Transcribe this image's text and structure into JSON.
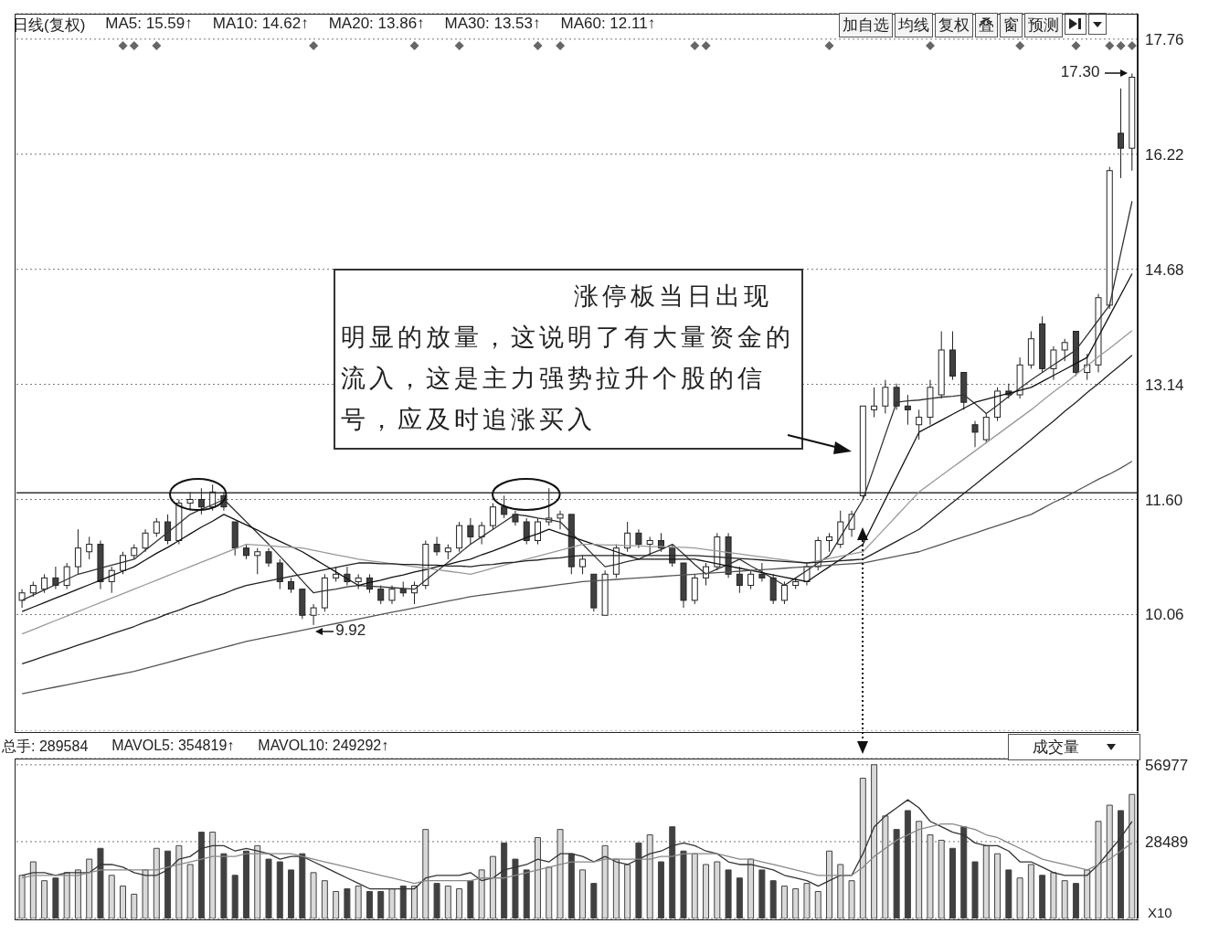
{
  "chart_data": [
    {
      "type": "candlestick",
      "categories": [
        null,
        null,
        null,
        null,
        null,
        null,
        null,
        null,
        null,
        null,
        null,
        null,
        null,
        null,
        null,
        null,
        null,
        null,
        null,
        null,
        null,
        null,
        null,
        null,
        null,
        null,
        null,
        null,
        null,
        null,
        null,
        null,
        null,
        null,
        null,
        null,
        null,
        null,
        null,
        null,
        null,
        null,
        null,
        null,
        null,
        null,
        null,
        null,
        null,
        null,
        null,
        null,
        null,
        null,
        null,
        null,
        null,
        null,
        null,
        null,
        null,
        null,
        null,
        null,
        null,
        null,
        null,
        null,
        null,
        null,
        null,
        null,
        null,
        null,
        null,
        null,
        null,
        null,
        null,
        null,
        null,
        null,
        null,
        null,
        null,
        null,
        null,
        null,
        null,
        null,
        null,
        null,
        null,
        null,
        null,
        null,
        null,
        null,
        null,
        null
      ],
      "ohlc": [
        [
          10.25,
          10.4,
          10.15,
          10.35
        ],
        [
          10.35,
          10.5,
          10.3,
          10.45
        ],
        [
          10.4,
          10.6,
          10.35,
          10.55
        ],
        [
          10.55,
          10.7,
          10.4,
          10.45
        ],
        [
          10.45,
          10.75,
          10.4,
          10.7
        ],
        [
          10.7,
          11.2,
          10.6,
          10.95
        ],
        [
          10.9,
          11.1,
          10.8,
          11.0
        ],
        [
          11.0,
          11.05,
          10.4,
          10.5
        ],
        [
          10.5,
          10.7,
          10.35,
          10.65
        ],
        [
          10.65,
          10.9,
          10.6,
          10.85
        ],
        [
          10.85,
          11.0,
          10.8,
          10.95
        ],
        [
          10.95,
          11.2,
          10.9,
          11.15
        ],
        [
          11.15,
          11.35,
          11.1,
          11.3
        ],
        [
          11.3,
          11.4,
          11.0,
          11.05
        ],
        [
          11.05,
          11.6,
          11.0,
          11.55
        ],
        [
          11.55,
          11.7,
          11.45,
          11.6
        ],
        [
          11.6,
          11.75,
          11.4,
          11.5
        ],
        [
          11.5,
          11.8,
          11.45,
          11.7
        ],
        [
          11.65,
          11.7,
          11.45,
          11.5
        ],
        [
          11.3,
          11.3,
          10.85,
          10.95
        ],
        [
          10.95,
          11.0,
          10.8,
          10.85
        ],
        [
          10.85,
          10.95,
          10.6,
          10.9
        ],
        [
          10.9,
          10.95,
          10.7,
          10.75
        ],
        [
          10.75,
          10.8,
          10.4,
          10.5
        ],
        [
          10.5,
          10.55,
          10.35,
          10.4
        ],
        [
          10.4,
          10.4,
          10.0,
          10.05
        ],
        [
          10.05,
          10.2,
          9.92,
          10.15
        ],
        [
          10.15,
          10.6,
          10.1,
          10.55
        ],
        [
          10.55,
          10.7,
          10.5,
          10.6
        ],
        [
          10.6,
          10.7,
          10.45,
          10.5
        ],
        [
          10.5,
          10.6,
          10.4,
          10.55
        ],
        [
          10.55,
          10.6,
          10.35,
          10.4
        ],
        [
          10.4,
          10.45,
          10.2,
          10.25
        ],
        [
          10.25,
          10.45,
          10.2,
          10.4
        ],
        [
          10.4,
          10.5,
          10.3,
          10.35
        ],
        [
          10.35,
          10.5,
          10.2,
          10.45
        ],
        [
          10.45,
          11.05,
          10.4,
          11.0
        ],
        [
          11.0,
          11.1,
          10.85,
          10.9
        ],
        [
          10.9,
          11.0,
          10.8,
          10.95
        ],
        [
          10.95,
          11.3,
          10.9,
          11.25
        ],
        [
          11.25,
          11.35,
          11.0,
          11.1
        ],
        [
          11.1,
          11.3,
          11.0,
          11.25
        ],
        [
          11.25,
          11.55,
          11.2,
          11.5
        ],
        [
          11.5,
          11.65,
          11.35,
          11.4
        ],
        [
          11.4,
          11.45,
          11.25,
          11.3
        ],
        [
          11.3,
          11.35,
          11.0,
          11.05
        ],
        [
          11.05,
          11.35,
          11.0,
          11.3
        ],
        [
          11.3,
          11.75,
          11.25,
          11.35
        ],
        [
          11.35,
          11.45,
          11.2,
          11.4
        ],
        [
          11.4,
          11.4,
          10.6,
          10.7
        ],
        [
          10.7,
          10.85,
          10.6,
          10.8
        ],
        [
          10.6,
          10.6,
          10.1,
          10.15
        ],
        [
          10.05,
          10.65,
          10.05,
          10.6
        ],
        [
          10.6,
          11.0,
          10.55,
          10.95
        ],
        [
          10.95,
          11.3,
          10.9,
          11.15
        ],
        [
          11.15,
          11.2,
          10.95,
          11.0
        ],
        [
          11.0,
          11.1,
          10.85,
          11.05
        ],
        [
          11.05,
          11.15,
          10.9,
          10.95
        ],
        [
          10.95,
          11.0,
          10.7,
          10.75
        ],
        [
          10.75,
          10.75,
          10.15,
          10.25
        ],
        [
          10.25,
          10.6,
          10.2,
          10.55
        ],
        [
          10.55,
          10.75,
          10.45,
          10.7
        ],
        [
          10.7,
          11.15,
          10.65,
          11.1
        ],
        [
          11.1,
          11.15,
          10.55,
          10.6
        ],
        [
          10.6,
          10.7,
          10.35,
          10.45
        ],
        [
          10.45,
          10.65,
          10.4,
          10.6
        ],
        [
          10.6,
          10.75,
          10.5,
          10.55
        ],
        [
          10.55,
          10.6,
          10.2,
          10.25
        ],
        [
          10.25,
          10.5,
          10.2,
          10.45
        ],
        [
          10.45,
          10.55,
          10.4,
          10.5
        ],
        [
          10.5,
          10.75,
          10.45,
          10.7
        ],
        [
          10.7,
          11.1,
          10.65,
          11.05
        ],
        [
          11.05,
          11.15,
          10.9,
          11.1
        ],
        [
          11.0,
          11.45,
          10.95,
          11.3
        ],
        [
          11.2,
          11.45,
          11.1,
          11.4
        ],
        [
          11.65,
          12.85,
          11.6,
          12.85
        ],
        [
          12.8,
          13.1,
          12.7,
          12.85
        ],
        [
          12.85,
          13.2,
          12.75,
          13.1
        ],
        [
          13.1,
          13.15,
          12.8,
          12.85
        ],
        [
          12.85,
          13.0,
          12.6,
          12.8
        ],
        [
          12.6,
          12.8,
          12.4,
          12.7
        ],
        [
          12.7,
          13.2,
          12.6,
          13.1
        ],
        [
          13.0,
          13.85,
          12.95,
          13.6
        ],
        [
          13.6,
          13.85,
          13.2,
          13.25
        ],
        [
          13.3,
          13.3,
          12.8,
          12.9
        ],
        [
          12.6,
          12.65,
          12.3,
          12.5
        ],
        [
          12.4,
          12.75,
          12.35,
          12.7
        ],
        [
          12.7,
          13.1,
          12.65,
          13.05
        ],
        [
          13.05,
          13.15,
          12.95,
          13.0
        ],
        [
          13.0,
          13.5,
          12.95,
          13.4
        ],
        [
          13.4,
          13.85,
          13.35,
          13.75
        ],
        [
          13.95,
          14.05,
          13.3,
          13.35
        ],
        [
          13.35,
          13.65,
          13.2,
          13.6
        ],
        [
          13.6,
          13.75,
          13.45,
          13.7
        ],
        [
          13.85,
          13.85,
          13.25,
          13.3
        ],
        [
          13.3,
          13.55,
          13.2,
          13.4
        ],
        [
          13.4,
          14.35,
          13.3,
          14.3
        ],
        [
          14.2,
          16.05,
          14.15,
          16.0
        ],
        [
          16.5,
          17.1,
          15.9,
          16.3
        ],
        [
          16.3,
          17.3,
          16.0,
          17.25
        ]
      ],
      "colors": [
        "#ffffff",
        "#ffffff",
        "#ffffff",
        "#404040",
        "#ffffff",
        "#ffffff",
        "#ffffff",
        "#404040",
        "#ffffff",
        "#ffffff",
        "#ffffff",
        "#ffffff",
        "#ffffff",
        "#404040",
        "#ffffff",
        "#ffffff",
        "#404040",
        "#ffffff",
        "#404040",
        "#404040",
        "#404040",
        "#ffffff",
        "#404040",
        "#404040",
        "#404040",
        "#404040",
        "#ffffff",
        "#ffffff",
        "#ffffff",
        "#404040",
        "#ffffff",
        "#404040",
        "#404040",
        "#ffffff",
        "#404040",
        "#ffffff",
        "#ffffff",
        "#404040",
        "#ffffff",
        "#ffffff",
        "#404040",
        "#ffffff",
        "#ffffff",
        "#404040",
        "#404040",
        "#404040",
        "#ffffff",
        "#ffffff",
        "#ffffff",
        "#404040",
        "#ffffff",
        "#404040",
        "#ffffff",
        "#ffffff",
        "#ffffff",
        "#404040",
        "#ffffff",
        "#404040",
        "#404040",
        "#404040",
        "#ffffff",
        "#ffffff",
        "#ffffff",
        "#404040",
        "#404040",
        "#ffffff",
        "#404040",
        "#404040",
        "#ffffff",
        "#ffffff",
        "#ffffff",
        "#ffffff",
        "#ffffff",
        "#ffffff",
        "#ffffff",
        "#ffffff",
        "#ffffff",
        "#ffffff",
        "#404040",
        "#404040",
        "#ffffff",
        "#ffffff",
        "#ffffff",
        "#404040",
        "#404040",
        "#404040",
        "#ffffff",
        "#ffffff",
        "#404040",
        "#ffffff",
        "#ffffff",
        "#404040",
        "#ffffff",
        "#ffffff",
        "#404040",
        "#ffffff",
        "#ffffff",
        "#ffffff",
        "#404040",
        "#ffffff"
      ],
      "series": [
        {
          "type": "line",
          "color": "#333333",
          "values": [
            10.25,
            10.32,
            10.39,
            10.46,
            10.53,
            10.6,
            10.64,
            10.68,
            10.72,
            10.76,
            10.8,
            10.92,
            11.04,
            11.16,
            11.28,
            11.4,
            11.47,
            11.53,
            11.6,
            11.45,
            11.3,
            11.15,
            11.0,
            10.84,
            10.68,
            10.51,
            10.35,
            10.38,
            10.4,
            10.43,
            10.45,
            10.44,
            10.43,
            10.42,
            10.41,
            10.4,
            10.52,
            10.64,
            10.76,
            10.88,
            11.0,
            11.1,
            11.2,
            11.3,
            11.4,
            11.38,
            11.35,
            11.33,
            11.3,
            11.15,
            11.0,
            10.85,
            10.7,
            10.73,
            10.77,
            10.8,
            10.87,
            10.93,
            11.0,
            10.87,
            10.73,
            10.6,
            10.67,
            10.73,
            10.8,
            10.71,
            10.63,
            10.54,
            10.45,
            10.55,
            10.65,
            10.75,
            10.85,
            11.1,
            11.35,
            11.6,
            12.03,
            12.47,
            12.9,
            12.92,
            12.93,
            12.95,
            12.97,
            12.98,
            13.0,
            12.88,
            12.75,
            12.86,
            12.98,
            13.09,
            13.2,
            13.3,
            13.4,
            13.5,
            13.6,
            13.8,
            14.0,
            14.2,
            14.9,
            15.59
          ]
        },
        {
          "type": "line",
          "color": "#111111",
          "values": [
            10.1,
            10.16,
            10.22,
            10.28,
            10.34,
            10.4,
            10.46,
            10.52,
            10.58,
            10.64,
            10.7,
            10.79,
            10.88,
            10.96,
            11.05,
            11.14,
            11.23,
            11.31,
            11.4,
            11.33,
            11.26,
            11.19,
            11.11,
            11.04,
            10.97,
            10.9,
            10.81,
            10.72,
            10.63,
            10.54,
            10.45,
            10.49,
            10.52,
            10.56,
            10.59,
            10.63,
            10.66,
            10.7,
            10.73,
            10.77,
            10.8,
            10.86,
            10.91,
            10.97,
            11.03,
            11.09,
            11.14,
            11.2,
            11.15,
            11.1,
            11.05,
            11.0,
            10.95,
            10.9,
            10.85,
            10.8,
            10.8,
            10.8,
            10.8,
            10.8,
            10.8,
            10.77,
            10.74,
            10.71,
            10.68,
            10.65,
            10.62,
            10.59,
            10.56,
            10.53,
            10.5,
            10.6,
            10.7,
            10.8,
            10.9,
            11.0,
            11.3,
            11.6,
            11.9,
            12.2,
            12.5,
            12.58,
            12.66,
            12.74,
            12.82,
            12.9,
            12.94,
            12.98,
            13.02,
            13.06,
            13.1,
            13.18,
            13.26,
            13.34,
            13.42,
            13.5,
            13.78,
            14.06,
            14.34,
            14.62
          ]
        },
        {
          "type": "line",
          "color": "#999999",
          "values": [
            9.8,
            9.86,
            9.92,
            9.98,
            10.04,
            10.1,
            10.16,
            10.22,
            10.28,
            10.34,
            10.4,
            10.46,
            10.52,
            10.58,
            10.64,
            10.7,
            10.76,
            10.82,
            10.88,
            10.94,
            11.0,
            10.99,
            10.98,
            10.97,
            10.96,
            10.95,
            10.92,
            10.89,
            10.86,
            10.83,
            10.8,
            10.78,
            10.76,
            10.74,
            10.72,
            10.7,
            10.68,
            10.66,
            10.64,
            10.62,
            10.6,
            10.64,
            10.68,
            10.72,
            10.76,
            10.8,
            10.84,
            10.88,
            10.92,
            10.96,
            11.0,
            11.0,
            10.99,
            10.99,
            10.98,
            10.98,
            10.97,
            10.97,
            10.96,
            10.96,
            10.95,
            10.93,
            10.91,
            10.89,
            10.87,
            10.85,
            10.83,
            10.81,
            10.79,
            10.77,
            10.75,
            10.78,
            10.81,
            10.84,
            10.87,
            10.9,
            11.06,
            11.22,
            11.38,
            11.54,
            11.7,
            11.81,
            11.92,
            12.03,
            12.14,
            12.25,
            12.36,
            12.47,
            12.58,
            12.69,
            12.8,
            12.92,
            13.04,
            13.15,
            13.27,
            13.39,
            13.51,
            13.62,
            13.74,
            13.86
          ]
        },
        {
          "type": "line",
          "color": "#222222",
          "values": [
            9.4,
            9.45,
            9.5,
            9.55,
            9.6,
            9.65,
            9.7,
            9.75,
            9.8,
            9.85,
            9.9,
            9.96,
            10.01,
            10.07,
            10.12,
            10.18,
            10.23,
            10.29,
            10.34,
            10.4,
            10.45,
            10.48,
            10.51,
            10.54,
            10.57,
            10.6,
            10.63,
            10.66,
            10.69,
            10.72,
            10.75,
            10.75,
            10.74,
            10.74,
            10.73,
            10.73,
            10.72,
            10.72,
            10.71,
            10.71,
            10.7,
            10.72,
            10.73,
            10.75,
            10.76,
            10.78,
            10.79,
            10.81,
            10.82,
            10.84,
            10.85,
            10.85,
            10.85,
            10.85,
            10.85,
            10.85,
            10.85,
            10.85,
            10.85,
            10.85,
            10.85,
            10.84,
            10.83,
            10.82,
            10.81,
            10.8,
            10.79,
            10.78,
            10.77,
            10.76,
            10.75,
            10.76,
            10.77,
            10.78,
            10.79,
            10.8,
            10.88,
            10.96,
            11.04,
            11.12,
            11.2,
            11.32,
            11.44,
            11.56,
            11.68,
            11.8,
            11.92,
            12.04,
            12.16,
            12.28,
            12.4,
            12.53,
            12.65,
            12.78,
            12.9,
            13.03,
            13.15,
            13.28,
            13.4,
            13.53
          ]
        },
        {
          "type": "line",
          "color": "#555555",
          "values": [
            9.0,
            9.03,
            9.06,
            9.09,
            9.12,
            9.15,
            9.18,
            9.21,
            9.24,
            9.27,
            9.3,
            9.34,
            9.38,
            9.42,
            9.46,
            9.5,
            9.54,
            9.58,
            9.62,
            9.66,
            9.7,
            9.73,
            9.76,
            9.79,
            9.82,
            9.85,
            9.88,
            9.91,
            9.94,
            9.97,
            10.0,
            10.03,
            10.06,
            10.09,
            10.12,
            10.15,
            10.18,
            10.21,
            10.24,
            10.27,
            10.3,
            10.32,
            10.34,
            10.36,
            10.38,
            10.4,
            10.42,
            10.44,
            10.46,
            10.48,
            10.5,
            10.51,
            10.52,
            10.53,
            10.54,
            10.55,
            10.56,
            10.57,
            10.58,
            10.59,
            10.6,
            10.61,
            10.62,
            10.63,
            10.64,
            10.65,
            10.66,
            10.67,
            10.68,
            10.69,
            10.7,
            10.71,
            10.72,
            10.73,
            10.74,
            10.75,
            10.78,
            10.81,
            10.84,
            10.87,
            10.9,
            10.95,
            11.0,
            11.05,
            11.1,
            11.15,
            11.2,
            11.25,
            11.3,
            11.35,
            11.4,
            11.48,
            11.56,
            11.63,
            11.71,
            11.79,
            11.87,
            11.94,
            12.02,
            12.11
          ]
        }
      ],
      "ylim": [
        8.5,
        18.1
      ],
      "yticks": [
        10.06,
        {
          "value": 11.6,
          "label": "11.60"
        },
        13.14,
        14.68,
        16.22,
        17.76
      ],
      "grid": "y",
      "tick_labels": "y",
      "ref_lines": [
        {
          "axis": "y",
          "value": 11.69,
          "color": "#333333"
        }
      ],
      "annotations": [
        "日线(复权)",
        "MA5: 15.59↑",
        "MA10: 14.62↑",
        "MA20: 13.86↑",
        "MA30: 13.53↑",
        "MA60: 12.11↑",
        "加自选",
        "均线",
        "复权",
        "叠",
        "窗",
        "预测",
        "涨停板当日出现明显的放量，这说明了有大量资金的流入，这是主力强势拉升个股的信号，应及时追涨买入",
        {
          "text": "9.92",
          "y": 9.92
        },
        "17.30"
      ]
    },
    {
      "type": "bar",
      "categories": [
        null,
        null,
        null,
        null,
        null,
        null,
        null,
        null,
        null,
        null,
        null,
        null,
        null,
        null,
        null,
        null,
        null,
        null,
        null,
        null,
        null,
        null,
        null,
        null,
        null,
        null,
        null,
        null,
        null,
        null,
        null,
        null,
        null,
        null,
        null,
        null,
        null,
        null,
        null,
        null,
        null,
        null,
        null,
        null,
        null,
        null,
        null,
        null,
        null,
        null,
        null,
        null,
        null,
        null,
        null,
        null,
        null,
        null,
        null,
        null,
        null,
        null,
        null,
        null,
        null,
        null,
        null,
        null,
        null,
        null,
        null,
        null,
        null,
        null,
        null,
        null,
        null,
        null,
        null,
        null,
        null,
        null,
        null,
        null,
        null,
        null,
        null,
        null,
        null,
        null,
        null,
        null,
        null,
        null,
        null,
        null,
        null,
        null,
        null,
        null
      ],
      "values": [
        16000,
        21000,
        14000,
        15000,
        17000,
        18000,
        22000,
        26000,
        16000,
        12000,
        9000,
        18000,
        26000,
        25000,
        27000,
        20000,
        32000,
        32000,
        24000,
        16000,
        25000,
        27000,
        22000,
        21000,
        18000,
        24000,
        17000,
        14000,
        10000,
        11000,
        12000,
        10000,
        10000,
        11000,
        12000,
        12000,
        33000,
        13000,
        12000,
        11000,
        14000,
        18000,
        23000,
        28000,
        22000,
        18000,
        30000,
        19000,
        33000,
        24000,
        18000,
        13000,
        27000,
        22000,
        20000,
        28000,
        31000,
        21000,
        34000,
        25000,
        24000,
        20000,
        21000,
        18000,
        15000,
        22000,
        18000,
        14000,
        12000,
        11000,
        13000,
        10000,
        25000,
        20000,
        14000,
        52000,
        57000,
        38000,
        33000,
        40000,
        36000,
        31000,
        29000,
        26000,
        34000,
        21000,
        27000,
        24000,
        18000,
        15000,
        20000,
        16000,
        17000,
        14000,
        13000,
        18000,
        36000,
        42000,
        40000,
        46000
      ],
      "colors": [
        "#d9d9d9",
        "#d9d9d9",
        "#d9d9d9",
        "#404040",
        "#d9d9d9",
        "#d9d9d9",
        "#d9d9d9",
        "#404040",
        "#d9d9d9",
        "#d9d9d9",
        "#d9d9d9",
        "#d9d9d9",
        "#d9d9d9",
        "#404040",
        "#d9d9d9",
        "#d9d9d9",
        "#404040",
        "#d9d9d9",
        "#404040",
        "#404040",
        "#404040",
        "#d9d9d9",
        "#404040",
        "#404040",
        "#404040",
        "#404040",
        "#d9d9d9",
        "#d9d9d9",
        "#d9d9d9",
        "#404040",
        "#d9d9d9",
        "#404040",
        "#404040",
        "#d9d9d9",
        "#404040",
        "#d9d9d9",
        "#d9d9d9",
        "#404040",
        "#d9d9d9",
        "#d9d9d9",
        "#404040",
        "#d9d9d9",
        "#d9d9d9",
        "#404040",
        "#404040",
        "#404040",
        "#d9d9d9",
        "#d9d9d9",
        "#d9d9d9",
        "#404040",
        "#d9d9d9",
        "#404040",
        "#d9d9d9",
        "#d9d9d9",
        "#d9d9d9",
        "#404040",
        "#d9d9d9",
        "#404040",
        "#404040",
        "#404040",
        "#d9d9d9",
        "#d9d9d9",
        "#d9d9d9",
        "#404040",
        "#404040",
        "#d9d9d9",
        "#404040",
        "#404040",
        "#d9d9d9",
        "#d9d9d9",
        "#d9d9d9",
        "#d9d9d9",
        "#d9d9d9",
        "#d9d9d9",
        "#d9d9d9",
        "#d9d9d9",
        "#d9d9d9",
        "#d9d9d9",
        "#404040",
        "#404040",
        "#d9d9d9",
        "#d9d9d9",
        "#d9d9d9",
        "#404040",
        "#404040",
        "#404040",
        "#d9d9d9",
        "#d9d9d9",
        "#404040",
        "#d9d9d9",
        "#d9d9d9",
        "#404040",
        "#d9d9d9",
        "#d9d9d9",
        "#404040",
        "#d9d9d9",
        "#d9d9d9",
        "#d9d9d9",
        "#404040",
        "#d9d9d9"
      ],
      "series": [
        {
          "type": "line",
          "color": "#333333",
          "values": [
            16000,
            17000,
            17000,
            16000,
            17000,
            17000,
            17000,
            20000,
            20000,
            19000,
            17000,
            16000,
            16000,
            18000,
            22000,
            23000,
            26000,
            27000,
            27000,
            25000,
            26000,
            25000,
            24000,
            22000,
            23000,
            23000,
            21000,
            19000,
            17000,
            15000,
            13000,
            11000,
            11000,
            11000,
            11000,
            11000,
            15000,
            16000,
            16000,
            16000,
            17000,
            14000,
            15000,
            18000,
            19000,
            20000,
            22000,
            21000,
            24000,
            24000,
            23000,
            21000,
            23000,
            21000,
            20000,
            22000,
            24000,
            25000,
            27000,
            28000,
            27000,
            25000,
            24000,
            21000,
            20000,
            20000,
            19000,
            18000,
            16000,
            15000,
            14000,
            12000,
            14000,
            16000,
            16000,
            24000,
            34000,
            38000,
            41000,
            44000,
            41000,
            36000,
            34000,
            32000,
            31000,
            28000,
            27000,
            27000,
            25000,
            21000,
            21000,
            19000,
            17000,
            16000,
            16000,
            16000,
            20000,
            25000,
            30000,
            36000
          ]
        },
        {
          "type": "line",
          "color": "#888888",
          "values": [
            15000,
            16000,
            16000,
            16000,
            16000,
            16000,
            17000,
            18000,
            18000,
            18000,
            18000,
            18000,
            18000,
            19000,
            20000,
            21000,
            22000,
            23000,
            23000,
            23000,
            24000,
            24000,
            24000,
            24000,
            24000,
            23000,
            22000,
            21000,
            20000,
            19000,
            18000,
            17000,
            16000,
            15000,
            14000,
            13000,
            14000,
            14000,
            14000,
            14000,
            14000,
            15000,
            15000,
            15000,
            16000,
            17000,
            18000,
            19000,
            20000,
            21000,
            21000,
            21000,
            22000,
            22000,
            22000,
            22000,
            22000,
            23000,
            23000,
            24000,
            24000,
            24000,
            24000,
            23000,
            22000,
            22000,
            21000,
            20000,
            19000,
            18000,
            17000,
            16000,
            16000,
            16000,
            16000,
            19000,
            23000,
            26000,
            29000,
            31000,
            33000,
            34000,
            35000,
            35000,
            34000,
            33000,
            31000,
            30000,
            28000,
            26000,
            24000,
            22000,
            21000,
            20000,
            19000,
            18000,
            20000,
            22000,
            25000,
            28000
          ]
        }
      ],
      "ylim": [
        0,
        59300
      ],
      "yticks": [
        28489,
        56977
      ],
      "grid": "y",
      "tick_labels": "y",
      "annotations": [
        "总手: 289584",
        "MAVOL5: 354819↑",
        "MAVOL10: 249292↑",
        "成交量",
        "X10"
      ]
    }
  ]
}
